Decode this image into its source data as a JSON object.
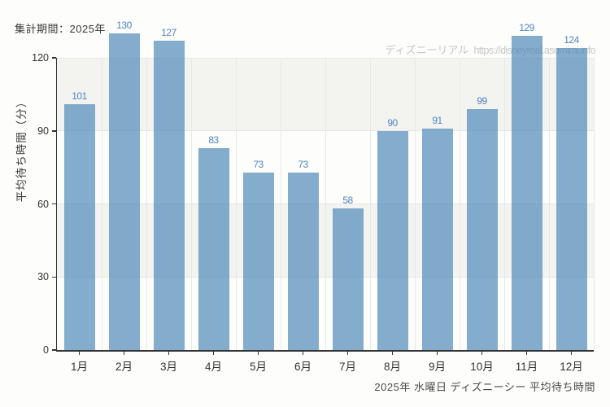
{
  "header": {
    "period_label": "集計期間：2025年"
  },
  "watermark": {
    "site_name": "ディズニーリアル",
    "url": "https://disneyreal.asumirai.info"
  },
  "chart_data": {
    "type": "bar",
    "title": "2025年 水曜日 ディズニーシー 平均待ち時間",
    "categories": [
      "1月",
      "2月",
      "3月",
      "4月",
      "5月",
      "6月",
      "7月",
      "8月",
      "9月",
      "10月",
      "11月",
      "12月"
    ],
    "values": [
      101,
      130,
      127,
      83,
      73,
      73,
      58,
      90,
      91,
      99,
      129,
      124
    ],
    "xlabel": "",
    "ylabel": "平均待ち時間（分）",
    "ylim": [
      0,
      120
    ],
    "yticks": [
      0,
      30,
      60,
      90,
      120
    ],
    "grid": true,
    "legend": "none",
    "bars_overflow_top": true,
    "colors": {
      "bar_fill": "#87abc9",
      "bar_fill_rgba": "rgba(70,130,180,0.66)",
      "value_label": "#4e86c2",
      "axis": "#333333",
      "gridline": "#e8e8e5",
      "band": "#f3f3f0",
      "watermark": "#c8c8c6",
      "caption_text": "#4a4a4a"
    }
  }
}
